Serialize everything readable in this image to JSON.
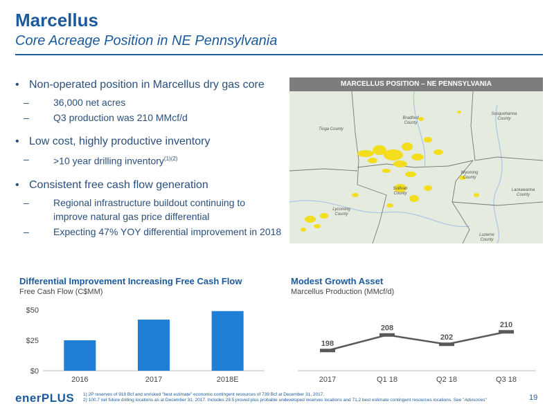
{
  "header": {
    "title": "Marcellus",
    "subtitle": "Core Acreage Position in NE Pennsylvania"
  },
  "bullets": [
    {
      "text": "Non-operated position in Marcellus dry gas core",
      "subs": [
        {
          "text": "36,000 net acres"
        },
        {
          "text": "Q3 production was 210 MMcf/d"
        }
      ]
    },
    {
      "text": "Low cost, highly productive inventory",
      "subs": [
        {
          "text": ">10 year drilling inventory",
          "sup": "(1)(2)"
        }
      ]
    },
    {
      "text": "Consistent free cash flow generation",
      "subs": [
        {
          "text": "Regional infrastructure buildout continuing to improve natural gas price differential"
        },
        {
          "text": "Expecting 47% YOY differential improvement in 2018"
        }
      ]
    }
  ],
  "map": {
    "header": "MARCELLUS POSITION – NE PENNSYLVANIA",
    "counties": {
      "tioga": "Tioga County",
      "bradford": "Bradford County",
      "susquehanna": "Susquehanna County",
      "wyoming": "Wyoming County",
      "lackawanna": "Lackawanna County",
      "sullivan": "Sullivan County",
      "lycoming": "Lycoming County",
      "luzerne": "Luzerne County"
    },
    "colors": {
      "acreage": "#f2dd1e",
      "background": "#e9ece3",
      "header": "#7d7d7d"
    }
  },
  "chart_data": [
    {
      "type": "bar",
      "title": "Differential Improvement Increasing Free Cash Flow",
      "subtitle": "Free Cash Flow (C$MM)",
      "categories": [
        "2016",
        "2017",
        "2018E"
      ],
      "values": [
        25,
        42,
        49
      ],
      "ylim": [
        0,
        50
      ],
      "yticks": [
        "$0",
        "$25",
        "$50"
      ],
      "ytick_values": [
        0,
        25,
        50
      ],
      "bar_color": "#1f7fd6",
      "grid": false
    },
    {
      "type": "line",
      "title": "Modest Growth Asset",
      "subtitle": "Marcellus Production (MMcf/d)",
      "categories": [
        "2017",
        "Q1 18",
        "Q2 18",
        "Q3 18"
      ],
      "values": [
        198,
        208,
        202,
        210
      ],
      "ylim": [
        185,
        225
      ],
      "line_color": "#595959",
      "grid": false
    }
  ],
  "footer": {
    "logo": "enerPLUS",
    "page": "19",
    "notes": [
      {
        "num": "1)",
        "text": "2P reserves of 918 Bcf and unrisked \"best estimate\" economic contingent resources of 739 Bcf at December 31, 2017."
      },
      {
        "num": "2)",
        "text": "100.7 net future drilling locations as at December 31, 2017. Includes 29.5 proved plus probable undeveloped reserves locations and 71.2 best estimate contingent resources locations. See \"",
        "italic": "Advisories",
        "tail": "\""
      }
    ]
  }
}
